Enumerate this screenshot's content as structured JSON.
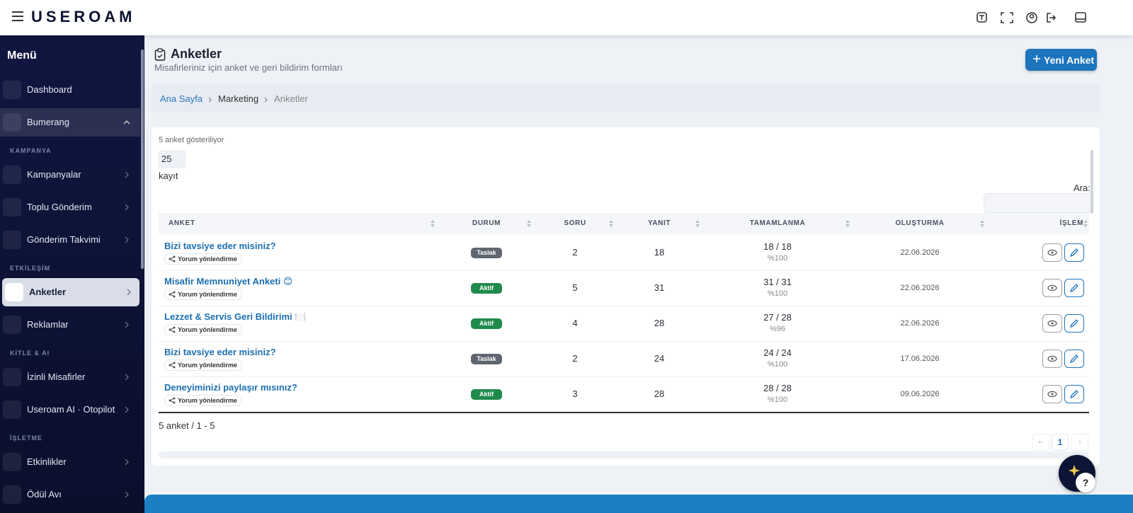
{
  "header": {
    "logo": "USEROAM"
  },
  "sidebar": {
    "title": "Menü",
    "items": [
      "Dashboard",
      "Bumerang"
    ],
    "sections": [
      {
        "label": "KAMPANYA",
        "items": [
          "Kampanyalar",
          "Toplu Gönderim",
          "Gönderim Takvimi"
        ]
      },
      {
        "label": "ETKİLEŞİM",
        "items": [
          "Anketler",
          "Reklamlar"
        ]
      },
      {
        "label": "KİTLE & AI",
        "items": [
          "İzinli Misafirler",
          "Useroam AI · Otopilot"
        ]
      },
      {
        "label": "İŞLETME",
        "items": [
          "Etkinlikler",
          "Ödül Avı"
        ]
      }
    ]
  },
  "page": {
    "title": "Anketler",
    "subtitle": "Misafirleriniz için anket ve geri bildirim formları",
    "new_button": "Yeni Anket"
  },
  "breadcrumb": [
    "Ana Sayfa",
    "Marketing",
    "Anketler"
  ],
  "table": {
    "info": "5 anket gösteriliyor",
    "page_length": "25",
    "page_length_label": "kayıt",
    "search_label": "Ara:",
    "columns": [
      "ANKET",
      "DURUM",
      "SORU",
      "YANIT",
      "TAMAMLANMA",
      "OLUŞTURMA",
      "İŞLEM"
    ],
    "rows": [
      {
        "title": "Bizi tavsiye eder misiniz?",
        "tag": "Yorum yönlendirme",
        "status": "Taslak",
        "status_color": "#5f6670",
        "questions": 2,
        "answers": 18,
        "completion": "18 / 18",
        "percent": "%100",
        "created": "22.06.2026"
      },
      {
        "title": "Misafir Memnuniyet Anketi 😊",
        "tag": "Yorum yönlendirme",
        "status": "Aktif",
        "status_color": "#1f8a4c",
        "questions": 5,
        "answers": 31,
        "completion": "31 / 31",
        "percent": "%100",
        "created": "22.06.2026"
      },
      {
        "title": "Lezzet & Servis Geri Bildirimi 🍽️",
        "tag": "Yorum yönlendirme",
        "status": "Aktif",
        "status_color": "#1f8a4c",
        "questions": 4,
        "answers": 28,
        "completion": "27 / 28",
        "percent": "%96",
        "created": "22.06.2026"
      },
      {
        "title": "Bizi tavsiye eder misiniz?",
        "tag": "Yorum yönlendirme",
        "status": "Taslak",
        "status_color": "#5f6670",
        "questions": 2,
        "answers": 24,
        "completion": "24 / 24",
        "percent": "%100",
        "created": "17.06.2026"
      },
      {
        "title": "Deneyiminizi paylaşır mısınız?",
        "tag": "Yorum yönlendirme",
        "status": "Aktif",
        "status_color": "#1f8a4c",
        "questions": 3,
        "answers": 28,
        "completion": "28 / 28",
        "percent": "%100",
        "created": "09.06.2026"
      }
    ],
    "footer": "5 anket / 1 - 5",
    "pages": [
      "1"
    ]
  },
  "help_button": "?"
}
